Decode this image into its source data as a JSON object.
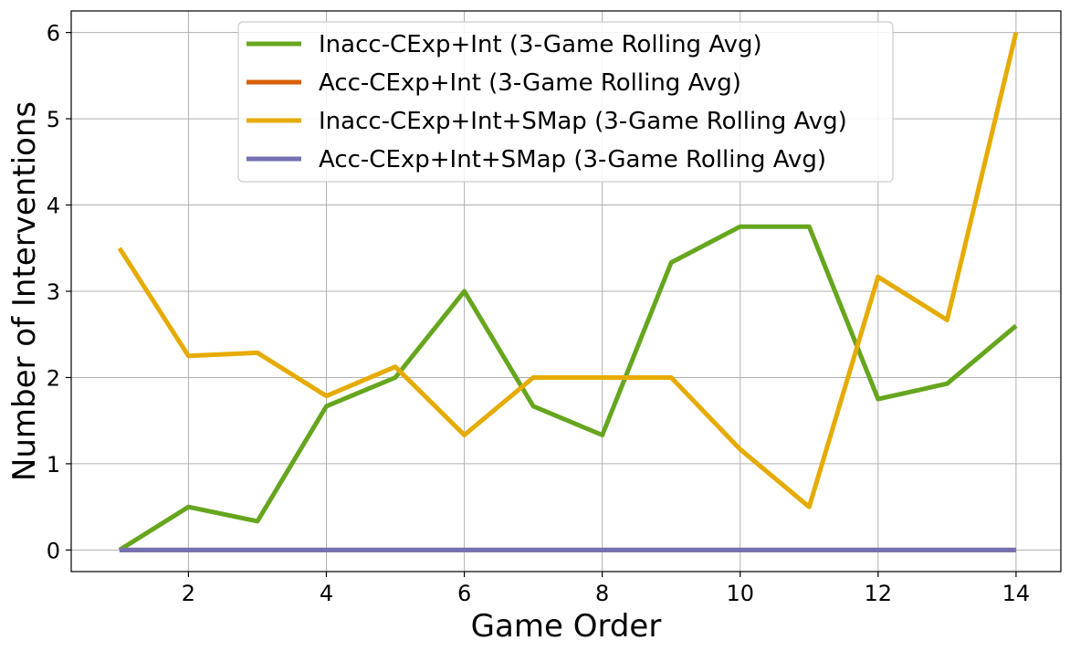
{
  "chart_data": {
    "type": "line",
    "title": "",
    "xlabel": "Game Order",
    "ylabel": "Number of Interventions",
    "xlim": [
      0.3,
      14.65
    ],
    "ylim": [
      -0.25,
      6.25
    ],
    "xticks": [
      2,
      4,
      6,
      8,
      10,
      12,
      14
    ],
    "yticks": [
      0,
      1,
      2,
      3,
      4,
      5,
      6
    ],
    "grid": true,
    "legend_position": "top-center",
    "x": [
      1,
      2,
      3,
      4,
      5,
      6,
      7,
      8,
      9,
      10,
      11,
      12,
      13,
      14
    ],
    "series": [
      {
        "name": "Inacc-CExp+Int (3-Game Rolling Avg)",
        "color": "#66a61e",
        "values": [
          0,
          0.5,
          0.333,
          1.667,
          2.0,
          3.0,
          1.667,
          1.333,
          3.333,
          3.75,
          3.75,
          1.75,
          1.929,
          2.6
        ]
      },
      {
        "name": "Acc-CExp+Int (3-Game Rolling Avg)",
        "color": "#d95f02",
        "values": [
          0,
          0,
          0,
          0,
          0,
          0,
          0,
          0,
          0,
          0,
          0,
          0,
          0,
          0
        ]
      },
      {
        "name": "Inacc-CExp+Int+SMap (3-Game Rolling Avg)",
        "color": "#e6ab02",
        "values": [
          3.5,
          2.25,
          2.286,
          1.786,
          2.125,
          1.333,
          2.0,
          2.0,
          2.0,
          1.167,
          0.5,
          3.167,
          2.667,
          6.0
        ]
      },
      {
        "name": "Acc-CExp+Int+SMap (3-Game Rolling Avg)",
        "color": "#7570b3",
        "values": [
          0,
          0,
          0,
          0,
          0,
          0,
          0,
          0,
          0,
          0,
          0,
          0,
          0,
          0
        ]
      }
    ]
  }
}
